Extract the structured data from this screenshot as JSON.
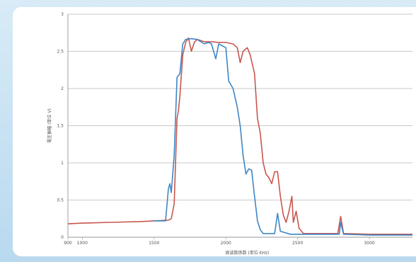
{
  "chart_data": {
    "type": "line",
    "title": "",
    "xlabel": "周波数係数 (単位 KHz)",
    "ylabel": "電圧振幅 (単位 V)",
    "xlim": [
      900,
      3300
    ],
    "ylim": [
      0,
      3
    ],
    "grid": true,
    "x_ticks": [
      "900",
      "1000",
      "1500",
      "2000",
      "2500",
      "3000"
    ],
    "y_ticks": [
      "0",
      "0.5",
      "1",
      "1.5",
      "2",
      "2.5",
      "3"
    ],
    "series": [
      {
        "color": "#c8574e",
        "points": [
          [
            900,
            0.18
          ],
          [
            1000,
            0.19
          ],
          [
            1200,
            0.2
          ],
          [
            1400,
            0.21
          ],
          [
            1500,
            0.22
          ],
          [
            1600,
            0.23
          ],
          [
            1620,
            0.25
          ],
          [
            1640,
            0.45
          ],
          [
            1660,
            1.6
          ],
          [
            1670,
            1.7
          ],
          [
            1680,
            1.9
          ],
          [
            1700,
            2.45
          ],
          [
            1720,
            2.62
          ],
          [
            1740,
            2.68
          ],
          [
            1760,
            2.5
          ],
          [
            1780,
            2.62
          ],
          [
            1800,
            2.66
          ],
          [
            1850,
            2.63
          ],
          [
            1900,
            2.63
          ],
          [
            1950,
            2.62
          ],
          [
            2000,
            2.62
          ],
          [
            2050,
            2.6
          ],
          [
            2080,
            2.55
          ],
          [
            2100,
            2.35
          ],
          [
            2120,
            2.5
          ],
          [
            2150,
            2.55
          ],
          [
            2170,
            2.45
          ],
          [
            2200,
            2.2
          ],
          [
            2220,
            1.6
          ],
          [
            2240,
            1.4
          ],
          [
            2260,
            1.0
          ],
          [
            2280,
            0.85
          ],
          [
            2300,
            0.8
          ],
          [
            2320,
            0.72
          ],
          [
            2340,
            0.88
          ],
          [
            2360,
            0.88
          ],
          [
            2380,
            0.55
          ],
          [
            2400,
            0.3
          ],
          [
            2420,
            0.2
          ],
          [
            2440,
            0.35
          ],
          [
            2460,
            0.55
          ],
          [
            2470,
            0.2
          ],
          [
            2490,
            0.35
          ],
          [
            2510,
            0.12
          ],
          [
            2540,
            0.05
          ],
          [
            2600,
            0.05
          ],
          [
            2700,
            0.05
          ],
          [
            2780,
            0.05
          ],
          [
            2800,
            0.28
          ],
          [
            2820,
            0.05
          ],
          [
            3000,
            0.04
          ],
          [
            3300,
            0.04
          ]
        ]
      },
      {
        "color": "#3e86c4",
        "points": [
          [
            1500,
            0.22
          ],
          [
            1580,
            0.22
          ],
          [
            1600,
            0.65
          ],
          [
            1610,
            0.72
          ],
          [
            1620,
            0.6
          ],
          [
            1640,
            1.1
          ],
          [
            1660,
            2.15
          ],
          [
            1680,
            2.2
          ],
          [
            1700,
            2.6
          ],
          [
            1720,
            2.66
          ],
          [
            1760,
            2.67
          ],
          [
            1800,
            2.66
          ],
          [
            1850,
            2.6
          ],
          [
            1880,
            2.62
          ],
          [
            1900,
            2.6
          ],
          [
            1930,
            2.4
          ],
          [
            1950,
            2.6
          ],
          [
            2000,
            2.55
          ],
          [
            2020,
            2.1
          ],
          [
            2050,
            2.0
          ],
          [
            2080,
            1.75
          ],
          [
            2100,
            1.5
          ],
          [
            2120,
            1.1
          ],
          [
            2140,
            0.85
          ],
          [
            2160,
            0.92
          ],
          [
            2180,
            0.9
          ],
          [
            2200,
            0.55
          ],
          [
            2220,
            0.22
          ],
          [
            2240,
            0.1
          ],
          [
            2260,
            0.05
          ],
          [
            2300,
            0.05
          ],
          [
            2340,
            0.05
          ],
          [
            2360,
            0.32
          ],
          [
            2380,
            0.08
          ],
          [
            2450,
            0.04
          ],
          [
            2600,
            0.04
          ],
          [
            2700,
            0.04
          ],
          [
            2790,
            0.04
          ],
          [
            2800,
            0.2
          ],
          [
            2820,
            0.04
          ],
          [
            3000,
            0.03
          ],
          [
            3300,
            0.03
          ]
        ]
      }
    ]
  }
}
